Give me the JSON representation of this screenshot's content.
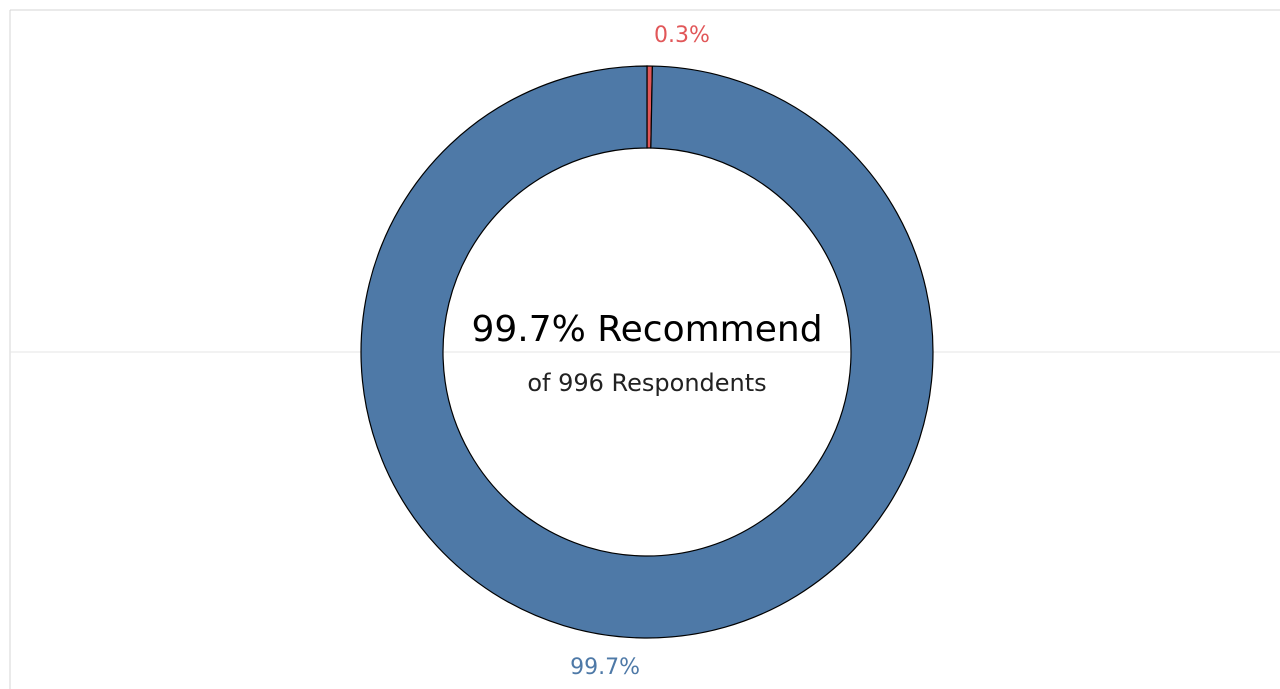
{
  "chart_data": {
    "type": "pie",
    "donut": true,
    "values": [
      0.3,
      99.7
    ],
    "value_labels": [
      "0.3%",
      "99.7%"
    ],
    "colors": [
      "#e15759",
      "#4e79a7"
    ],
    "annotations": [
      "99.7% Recommend",
      "of 996 Respondents"
    ]
  }
}
